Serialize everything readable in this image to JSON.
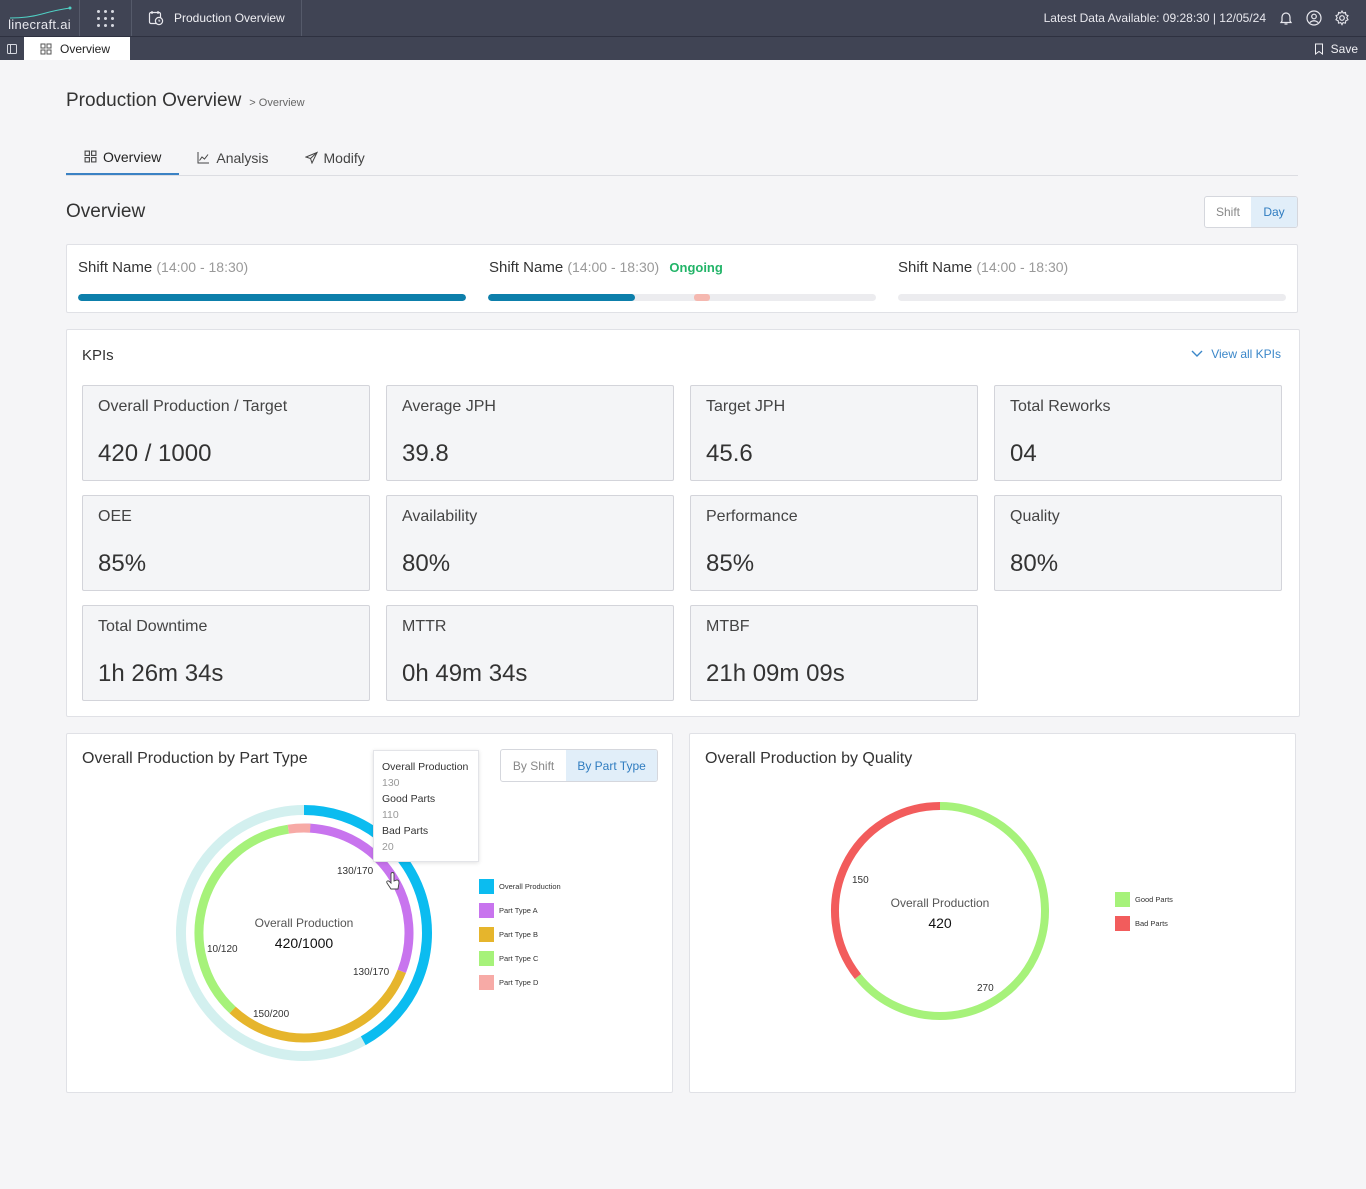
{
  "app": {
    "logo": "linecraft.ai",
    "title": "Production Overview",
    "latest_data": "Latest Data Available: 09:28:30 | 12/05/24",
    "tab": "Overview",
    "save_label": "Save"
  },
  "page": {
    "title": "Production Overview",
    "breadcrumb": "> Overview",
    "tabs": [
      {
        "label": "Overview",
        "icon": "grid-icon"
      },
      {
        "label": "Analysis",
        "icon": "line-chart-icon"
      },
      {
        "label": "Modify",
        "icon": "send-icon"
      }
    ],
    "section_title": "Overview",
    "toggle": {
      "shift": "Shift",
      "day": "Day",
      "selected": "Day"
    }
  },
  "shifts": [
    {
      "name": "Shift Name",
      "time": "(14:00 - 18:30)",
      "status": "",
      "progress": 1.0,
      "marker": null
    },
    {
      "name": "Shift Name",
      "time": "(14:00 - 18:30)",
      "status": "Ongoing",
      "progress": 0.38,
      "marker": 0.53
    },
    {
      "name": "Shift Name",
      "time": "(14:00 - 18:30)",
      "status": "",
      "progress": 0.0,
      "marker": null
    }
  ],
  "kpis": {
    "title": "KPIs",
    "view_all": "View all KPIs",
    "items": [
      {
        "label": "Overall Production / Target",
        "value": "420 / 1000"
      },
      {
        "label": "Average JPH",
        "value": "39.8"
      },
      {
        "label": "Target JPH",
        "value": "45.6"
      },
      {
        "label": "Total Reworks",
        "value": "04"
      },
      {
        "label": "OEE",
        "value": "85%"
      },
      {
        "label": "Availability",
        "value": "80%"
      },
      {
        "label": "Performance",
        "value": "85%"
      },
      {
        "label": "Quality",
        "value": "80%"
      },
      {
        "label": "Total Downtime",
        "value": "1h 26m 34s"
      },
      {
        "label": "MTTR",
        "value": "0h 49m 34s"
      },
      {
        "label": "MTBF",
        "value": "21h 09m 09s"
      }
    ]
  },
  "part_chart": {
    "title": "Overall Production by Part Type",
    "toggle": {
      "by_shift": "By Shift",
      "by_part_type": "By Part Type",
      "selected": "By Part Type"
    },
    "tooltip": {
      "overall_label": "Overall Production",
      "overall_value": "130",
      "good_label": "Good Parts",
      "good_value": "110",
      "bad_label": "Bad Parts",
      "bad_value": "20"
    }
  },
  "quality_chart": {
    "title": "Overall Production by Quality"
  },
  "chart_data": [
    {
      "type": "pie",
      "subtype": "nested-donut",
      "title": "Overall Production by Part Type",
      "center_label": "Overall Production",
      "center_value": "420/1000",
      "outer": {
        "name": "Overall Production",
        "value": 420,
        "target": 1000,
        "color": "#0bbcf0",
        "remainder_color": "#d3f0ef"
      },
      "series": [
        {
          "name": "Part Type A",
          "value": 130,
          "target": 170,
          "label": "130/170",
          "color": "#c874ee"
        },
        {
          "name": "Part Type B",
          "value": 130,
          "target": 170,
          "label": "130/170",
          "color": "#e6b52c"
        },
        {
          "name": "Part Type C",
          "value": 150,
          "target": 200,
          "label": "150/200",
          "color": "#a6f27a"
        },
        {
          "name": "Part Type D",
          "value": 10,
          "target": 120,
          "label": "10/120",
          "color": "#f7aaa6"
        }
      ],
      "legend": [
        "Overall Production",
        "Part Type A",
        "Part Type B",
        "Part Type C",
        "Part Type D"
      ],
      "legend_colors": [
        "#0bbcf0",
        "#c874ee",
        "#e6b52c",
        "#a6f27a",
        "#f7aaa6"
      ]
    },
    {
      "type": "pie",
      "subtype": "donut",
      "title": "Overall Production by Quality",
      "center_label": "Overall Production",
      "center_value": "420",
      "categories": [
        "Good Parts",
        "Bad Parts"
      ],
      "values": [
        270,
        150
      ],
      "colors": [
        "#a6f27a",
        "#f25c5c"
      ]
    }
  ]
}
